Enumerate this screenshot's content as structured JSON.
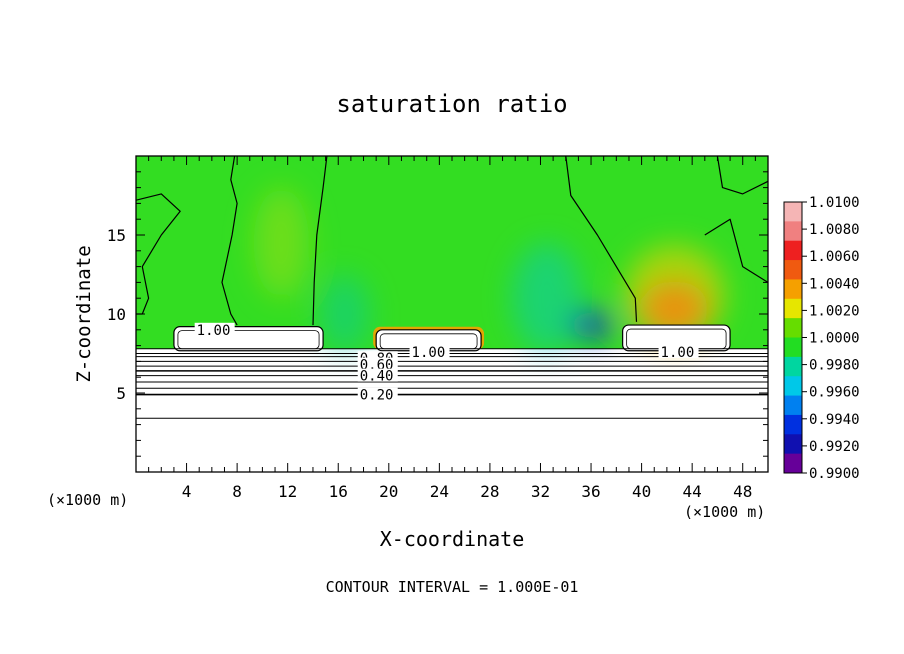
{
  "chart_data": {
    "type": "heatmap",
    "title": "saturation ratio",
    "xlabel": "X-coordinate",
    "ylabel": "Z-coordinate",
    "x_unit_left": "(×1000 m)",
    "x_unit_right": "(×1000 m)",
    "footer": "CONTOUR INTERVAL = 1.000E-01",
    "xlim": [
      0,
      50
    ],
    "ylim": [
      0,
      20
    ],
    "x_ticks": [
      4,
      8,
      12,
      16,
      20,
      24,
      28,
      32,
      36,
      40,
      44,
      48
    ],
    "y_ticks": [
      5,
      10,
      15
    ],
    "grid": false,
    "legend": "right",
    "colorbar": {
      "labels": [
        "1.0100",
        "1.0080",
        "1.0060",
        "1.0040",
        "1.0020",
        "1.0000",
        "0.9980",
        "0.9960",
        "0.9940",
        "0.9920",
        "0.9900"
      ],
      "colors": [
        "#f5b5b5",
        "#f08080",
        "#ee2020",
        "#f05a10",
        "#f5a000",
        "#e6e600",
        "#66dd00",
        "#22dd22",
        "#00d6a0",
        "#00c8e8",
        "#0080f0",
        "#0030e0",
        "#1010b0",
        "#660099"
      ]
    },
    "background_color": "#33dd22",
    "background_value": 1.0,
    "features": [
      {
        "name": "updraft-1",
        "x": 11.5,
        "z": 14.5,
        "sx": 2.2,
        "sz": 3.5,
        "color": "#99e010",
        "opacity": 0.55
      },
      {
        "name": "supersat-core",
        "x": 42.6,
        "z": 10.3,
        "sx": 2.7,
        "sz": 1.8,
        "color": "#ee1e1e",
        "opacity": 0.85
      },
      {
        "name": "supersat-halo",
        "x": 42.6,
        "z": 11.2,
        "sx": 4.0,
        "sz": 3.2,
        "color": "#f5d000",
        "opacity": 0.6
      },
      {
        "name": "subsat-blue",
        "x": 36.0,
        "z": 9.3,
        "sx": 1.8,
        "sz": 0.9,
        "color": "#1030d0",
        "opacity": 0.85
      },
      {
        "name": "subsat-cyan",
        "x": 32.5,
        "z": 11.0,
        "sx": 2.8,
        "sz": 3.5,
        "color": "#00c8d0",
        "opacity": 0.45
      },
      {
        "name": "subsat-cyan-2",
        "x": 16.5,
        "z": 10.0,
        "sx": 2.0,
        "sz": 2.5,
        "color": "#00c8b0",
        "opacity": 0.45
      }
    ],
    "cloud_regions": [
      {
        "x0": 3.0,
        "x1": 14.8,
        "z0": 7.8,
        "z1": 9.2
      },
      {
        "x0": 19.0,
        "x1": 27.3,
        "z0": 7.8,
        "z1": 9.0
      },
      {
        "x0": 38.5,
        "x1": 47.0,
        "z0": 7.8,
        "z1": 9.3
      }
    ],
    "contour_labels": [
      {
        "text": "0.80",
        "x": 17.7,
        "z": 7.2
      },
      {
        "text": "0.60",
        "x": 17.7,
        "z": 6.8
      },
      {
        "text": "0.40",
        "x": 17.7,
        "z": 6.1
      },
      {
        "text": "0.20",
        "x": 17.7,
        "z": 4.9
      },
      {
        "text": "1.00",
        "x": 21.8,
        "z": 7.6
      },
      {
        "text": "1.00",
        "x": 41.5,
        "z": 7.6
      },
      {
        "text": "1.00",
        "x": 4.8,
        "z": 9.0
      }
    ],
    "horizontal_contours_z": [
      7.8,
      7.5,
      7.3,
      7.0,
      6.7,
      6.4,
      6.1,
      5.7,
      5.3,
      4.9,
      3.4
    ],
    "vertical_contours": [
      [
        [
          7.8,
          20
        ],
        [
          7.5,
          18.5
        ],
        [
          8.0,
          17.0
        ],
        [
          7.6,
          15.0
        ],
        [
          6.8,
          12.0
        ],
        [
          7.5,
          10.0
        ],
        [
          8.0,
          9.3
        ]
      ],
      [
        [
          15.1,
          20
        ],
        [
          14.8,
          18.0
        ],
        [
          14.3,
          15.0
        ],
        [
          14.1,
          12.0
        ],
        [
          14.0,
          9.3
        ]
      ],
      [
        [
          34.0,
          20
        ],
        [
          34.4,
          17.5
        ],
        [
          36.5,
          15.0
        ],
        [
          38.0,
          13.0
        ],
        [
          39.5,
          11.0
        ],
        [
          39.6,
          9.5
        ]
      ],
      [
        [
          0,
          17.2
        ],
        [
          2.0,
          17.6
        ],
        [
          3.5,
          16.5
        ],
        [
          2.0,
          15.0
        ],
        [
          0.5,
          13.0
        ],
        [
          1.0,
          11.0
        ],
        [
          0.5,
          10.0
        ],
        [
          0,
          10.0
        ]
      ],
      [
        [
          46.0,
          20
        ],
        [
          46.4,
          18.0
        ],
        [
          48.0,
          17.6
        ],
        [
          50,
          18.4
        ]
      ],
      [
        [
          45.0,
          15.0
        ],
        [
          47.0,
          16.0
        ],
        [
          48.0,
          13.0
        ],
        [
          50,
          12.0
        ]
      ]
    ]
  }
}
